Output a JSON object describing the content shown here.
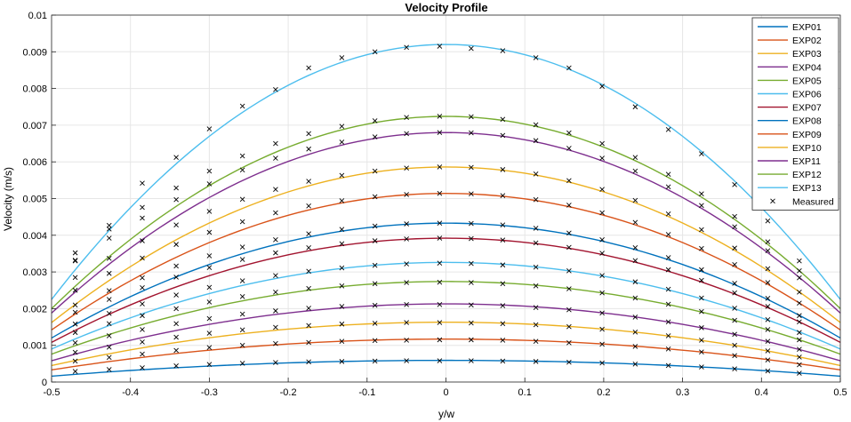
{
  "chart_data": {
    "type": "line",
    "title": "Velocity Profile",
    "xlabel": "y/w",
    "ylabel": "Velocity (m/s)",
    "xlim": [
      -0.5,
      0.5
    ],
    "ylim": [
      0,
      0.01
    ],
    "xticks": [
      -0.5,
      -0.4,
      -0.3,
      -0.2,
      -0.1,
      0,
      0.1,
      0.2,
      0.3,
      0.4,
      0.5
    ],
    "xtick_labels": [
      "-0.5",
      "-0.4",
      "-0.3",
      "-0.2",
      "-0.1",
      "0",
      "0.1",
      "0.2",
      "0.3",
      "0.4",
      "0.5"
    ],
    "yticks": [
      0,
      0.001,
      0.002,
      0.003,
      0.004,
      0.005,
      0.006,
      0.007,
      0.008,
      0.009,
      0.01
    ],
    "ytick_labels": [
      "0",
      "0.001",
      "0.002",
      "0.003",
      "0.004",
      "0.005",
      "0.006",
      "0.007",
      "0.008",
      "0.009",
      "0.01"
    ],
    "grid": true,
    "legend_position": "top-right",
    "series": [
      {
        "name": "EXP01",
        "color": "#0072BD",
        "peak": 0.00059,
        "edge": 0.00016
      },
      {
        "name": "EXP02",
        "color": "#D95319",
        "peak": 0.00117,
        "edge": 0.00033
      },
      {
        "name": "EXP03",
        "color": "#EDB120",
        "peak": 0.00163,
        "edge": 0.00045
      },
      {
        "name": "EXP04",
        "color": "#7E2F8E",
        "peak": 0.00213,
        "edge": 0.00058
      },
      {
        "name": "EXP05",
        "color": "#77AC30",
        "peak": 0.00274,
        "edge": 0.00076
      },
      {
        "name": "EXP06",
        "color": "#4DBEEE",
        "peak": 0.00326,
        "edge": 0.0009
      },
      {
        "name": "EXP07",
        "color": "#A2142F",
        "peak": 0.00392,
        "edge": 0.00108
      },
      {
        "name": "EXP08",
        "color": "#0072BD",
        "peak": 0.00433,
        "edge": 0.0012
      },
      {
        "name": "EXP09",
        "color": "#D95319",
        "peak": 0.00514,
        "edge": 0.00142
      },
      {
        "name": "EXP10",
        "color": "#EDB120",
        "peak": 0.00586,
        "edge": 0.00162
      },
      {
        "name": "EXP11",
        "color": "#7E2F8E",
        "peak": 0.0068,
        "edge": 0.00188
      },
      {
        "name": "EXP12",
        "color": "#77AC30",
        "peak": 0.00724,
        "edge": 0.002
      },
      {
        "name": "EXP13",
        "color": "#4DBEEE",
        "peak": 0.0092,
        "edge": 0.00225
      }
    ],
    "measured": {
      "name": "Measured",
      "marker": "x",
      "x": [
        -0.47,
        -0.427,
        -0.385,
        -0.342,
        -0.3,
        -0.258,
        -0.216,
        -0.174,
        -0.132,
        -0.09,
        -0.05,
        -0.008,
        0.032,
        0.072,
        0.114,
        0.156,
        0.198,
        0.24,
        0.282,
        0.324,
        0.366,
        0.408,
        0.448
      ],
      "y": [
        [
          0.00029,
          0.00034,
          0.00039,
          0.00044,
          0.00048,
          0.00051,
          0.00053,
          0.00055,
          0.00056,
          0.00057,
          0.00058,
          0.00058,
          0.00058,
          0.00057,
          0.00056,
          0.00054,
          0.00052,
          0.00049,
          0.00045,
          0.00041,
          0.00036,
          0.0003,
          0.00024
        ],
        [
          0.00057,
          0.00067,
          0.00076,
          0.00086,
          0.00094,
          0.001,
          0.00105,
          0.00108,
          0.00111,
          0.00113,
          0.00114,
          0.00115,
          0.00115,
          0.00114,
          0.00111,
          0.00107,
          0.00103,
          0.00097,
          0.0009,
          0.00082,
          0.00072,
          0.0006,
          0.00047
        ],
        [
          0.00081,
          0.00095,
          0.00109,
          0.00122,
          0.00133,
          0.00142,
          0.00149,
          0.00154,
          0.00158,
          0.0016,
          0.00162,
          0.00162,
          0.00161,
          0.00159,
          0.00156,
          0.00151,
          0.00144,
          0.00136,
          0.00126,
          0.00114,
          0.001,
          0.00085,
          0.00068
        ],
        [
          0.00107,
          0.00126,
          0.00143,
          0.00159,
          0.00173,
          0.00185,
          0.00194,
          0.00201,
          0.00206,
          0.00209,
          0.00211,
          0.00211,
          0.0021,
          0.00208,
          0.00203,
          0.00197,
          0.00188,
          0.00177,
          0.00164,
          0.00148,
          0.0013,
          0.00111,
          0.00089
        ],
        [
          0.00135,
          0.00159,
          0.00181,
          0.002,
          0.00218,
          0.00233,
          0.00245,
          0.00255,
          0.00262,
          0.00268,
          0.00271,
          0.00272,
          0.00271,
          0.00268,
          0.00262,
          0.00254,
          0.00243,
          0.00229,
          0.00212,
          0.00192,
          0.00168,
          0.00143,
          0.00115
        ],
        [
          0.00158,
          0.00187,
          0.00213,
          0.00237,
          0.00258,
          0.00276,
          0.0029,
          0.00302,
          0.00311,
          0.00318,
          0.00322,
          0.00324,
          0.00323,
          0.00319,
          0.00313,
          0.00303,
          0.0029,
          0.00273,
          0.00253,
          0.00229,
          0.00201,
          0.0017,
          0.00135
        ],
        [
          0.0019,
          0.00225,
          0.00257,
          0.00286,
          0.00312,
          0.00334,
          0.00352,
          0.00366,
          0.00377,
          0.00385,
          0.0039,
          0.00392,
          0.00391,
          0.00387,
          0.00379,
          0.00367,
          0.00351,
          0.00331,
          0.00306,
          0.00277,
          0.00243,
          0.00206,
          0.00164
        ],
        [
          0.0021,
          0.00249,
          0.00284,
          0.00316,
          0.00344,
          0.00368,
          0.00388,
          0.00404,
          0.00416,
          0.00425,
          0.00431,
          0.00433,
          0.00432,
          0.00428,
          0.00419,
          0.00406,
          0.00388,
          0.00366,
          0.00339,
          0.00306,
          0.00269,
          0.00228,
          0.00181
        ],
        [
          0.0025,
          0.00296,
          0.00338,
          0.00375,
          0.00408,
          0.00437,
          0.00461,
          0.0048,
          0.00494,
          0.00505,
          0.00511,
          0.00514,
          0.00513,
          0.00508,
          0.00497,
          0.00482,
          0.00461,
          0.00435,
          0.00402,
          0.00364,
          0.0032,
          0.00271,
          0.00215
        ],
        [
          0.00285,
          0.00337,
          0.00385,
          0.00428,
          0.00465,
          0.00498,
          0.00525,
          0.00547,
          0.00563,
          0.00575,
          0.00583,
          0.00586,
          0.00585,
          0.00579,
          0.00567,
          0.00549,
          0.00525,
          0.00495,
          0.00458,
          0.00415,
          0.00365,
          0.00309,
          0.00245
        ],
        [
          0.00332,
          0.00392,
          0.00447,
          0.00497,
          0.0054,
          0.00578,
          0.0061,
          0.00635,
          0.00654,
          0.00668,
          0.00677,
          0.0068,
          0.00679,
          0.00672,
          0.00658,
          0.00637,
          0.0061,
          0.00575,
          0.00532,
          0.00481,
          0.00423,
          0.00358,
          0.00284
        ],
        [
          0.00352,
          0.00417,
          0.00476,
          0.00529,
          0.00575,
          0.00616,
          0.0065,
          0.00677,
          0.00697,
          0.00712,
          0.00721,
          0.00724,
          0.00723,
          0.00716,
          0.00701,
          0.00679,
          0.0065,
          0.00612,
          0.00566,
          0.00513,
          0.00451,
          0.00382,
          0.00303
        ],
        [
          0.0033,
          0.00427,
          0.00542,
          0.00612,
          0.0069,
          0.00752,
          0.00797,
          0.00856,
          0.00884,
          0.009,
          0.00912,
          0.00915,
          0.00909,
          0.00903,
          0.00884,
          0.00856,
          0.00806,
          0.0075,
          0.00688,
          0.00622,
          0.00538,
          0.00439,
          0.0033
        ]
      ]
    }
  }
}
